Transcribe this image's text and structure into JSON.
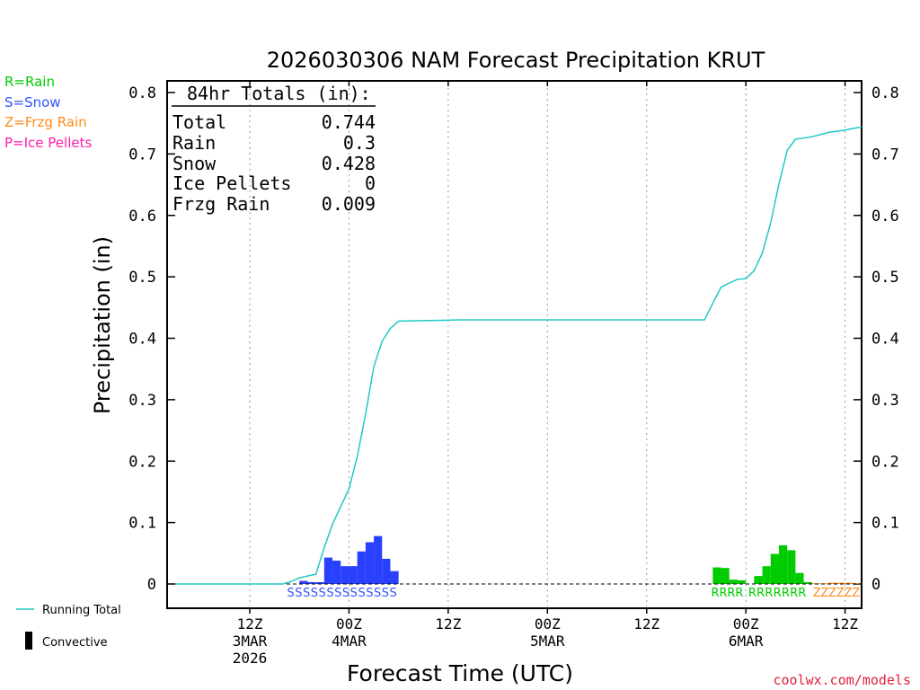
{
  "chart_data": {
    "type": "bar",
    "title": "2026030306 NAM Forecast Precipitation KRUT",
    "xlabel": "Forecast Time (UTC)",
    "ylabel": "Precipitation (in)",
    "ylim": [
      0,
      0.8
    ],
    "y_ticks": [
      "0",
      "0.1",
      "0.2",
      "0.3",
      "0.4",
      "0.5",
      "0.6",
      "0.7",
      "0.8"
    ],
    "x_range_hours": [
      -4,
      80
    ],
    "x_ticks": [
      {
        "hour": 6,
        "line1": "12Z",
        "line2": "3MAR",
        "line3": "2026"
      },
      {
        "hour": 18,
        "line1": "00Z",
        "line2": "4MAR",
        "line3": ""
      },
      {
        "hour": 30,
        "line1": "12Z",
        "line2": "",
        "line3": ""
      },
      {
        "hour": 42,
        "line1": "00Z",
        "line2": "5MAR",
        "line3": ""
      },
      {
        "hour": 54,
        "line1": "12Z",
        "line2": "",
        "line3": ""
      },
      {
        "hour": 66,
        "line1": "00Z",
        "line2": "6MAR",
        "line3": ""
      },
      {
        "hour": 78,
        "line1": "12Z",
        "line2": "",
        "line3": ""
      }
    ],
    "series": [
      {
        "name": "Snow",
        "color": "#2a40ff",
        "bar_hours": 1,
        "marker": "SSSSSSSSSSSSSS",
        "points": [
          [
            12,
            0.005
          ],
          [
            13,
            0.003
          ],
          [
            14,
            0.003
          ],
          [
            15,
            0.043
          ],
          [
            16,
            0.038
          ],
          [
            17,
            0.029
          ],
          [
            18,
            0.029
          ],
          [
            19,
            0.053
          ],
          [
            20,
            0.068
          ],
          [
            21,
            0.078
          ],
          [
            22,
            0.041
          ],
          [
            23,
            0.021
          ]
        ]
      },
      {
        "name": "Rain",
        "color": "#00cc00",
        "bar_hours": 1,
        "markers": [
          "RRRR",
          "RRRRRRR"
        ],
        "points": [
          [
            62,
            0.027
          ],
          [
            63,
            0.026
          ],
          [
            64,
            0.007
          ],
          [
            65,
            0.006
          ],
          [
            67,
            0.013
          ],
          [
            68,
            0.029
          ],
          [
            69,
            0.049
          ],
          [
            70,
            0.063
          ],
          [
            71,
            0.055
          ],
          [
            72,
            0.018
          ],
          [
            73,
            0.003
          ]
        ]
      },
      {
        "name": "Frzg Rain",
        "color": "#ff8c1a",
        "bar_hours": 1,
        "marker": "ZZZZZZ",
        "points": [
          [
            74,
            0.001
          ],
          [
            75,
            0.001
          ],
          [
            76,
            0.002
          ],
          [
            77,
            0.002
          ],
          [
            78,
            0.002
          ],
          [
            79,
            0.001
          ]
        ]
      },
      {
        "name": "Running Total",
        "type": "line",
        "color": "#20c8c8",
        "points": [
          [
            -3,
            0
          ],
          [
            0,
            0
          ],
          [
            5,
            0
          ],
          [
            8,
            0
          ],
          [
            10,
            0
          ],
          [
            11,
            0.004
          ],
          [
            12,
            0.01
          ],
          [
            13,
            0.013
          ],
          [
            14,
            0.016
          ],
          [
            15,
            0.059
          ],
          [
            16,
            0.097
          ],
          [
            17,
            0.126
          ],
          [
            18,
            0.155
          ],
          [
            19,
            0.208
          ],
          [
            20,
            0.276
          ],
          [
            21,
            0.354
          ],
          [
            22,
            0.395
          ],
          [
            23,
            0.416
          ],
          [
            24,
            0.428
          ],
          [
            28,
            0.429
          ],
          [
            32,
            0.43
          ],
          [
            50,
            0.43
          ],
          [
            61,
            0.43
          ],
          [
            62,
            0.457
          ],
          [
            63,
            0.483
          ],
          [
            64,
            0.49
          ],
          [
            65,
            0.496
          ],
          [
            66,
            0.497
          ],
          [
            67,
            0.51
          ],
          [
            68,
            0.539
          ],
          [
            69,
            0.588
          ],
          [
            70,
            0.651
          ],
          [
            71,
            0.706
          ],
          [
            72,
            0.724
          ],
          [
            74,
            0.728
          ],
          [
            76,
            0.735
          ],
          [
            78,
            0.739
          ],
          [
            80,
            0.744
          ]
        ]
      }
    ],
    "totals_box": {
      "heading": "84hr Totals (in):",
      "rows": [
        {
          "label": "Total",
          "value": "0.744"
        },
        {
          "label": "Rain",
          "value": "0.3"
        },
        {
          "label": "Snow",
          "value": "0.428"
        },
        {
          "label": "Ice Pellets",
          "value": "0"
        },
        {
          "label": "Frzg Rain",
          "value": "0.009"
        }
      ]
    },
    "type_legend": [
      {
        "text": "R=Rain",
        "color": "#00cc00"
      },
      {
        "text": "S=Snow",
        "color": "#3355ff"
      },
      {
        "text": "Z=Frzg Rain",
        "color": "#ff8c1a"
      },
      {
        "text": "P=Ice Pellets",
        "color": "#ff1aa8"
      }
    ],
    "bottom_legend": {
      "line_label": "Running Total",
      "bar_label": "Convective"
    },
    "credit": "coolwx.com/models"
  }
}
